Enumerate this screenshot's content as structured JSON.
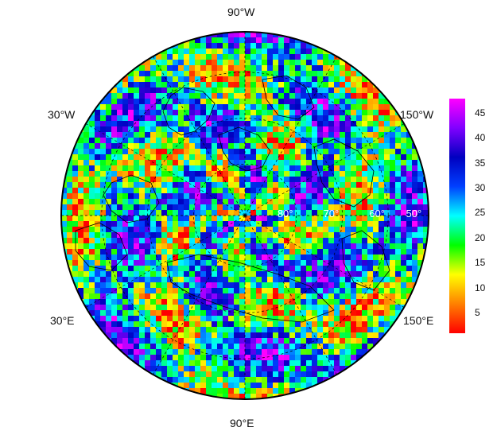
{
  "map": {
    "projection": "north-polar-stereographic",
    "longitude_labels": {
      "top": "90°W",
      "left_top": "30°W",
      "right_top": "150°W",
      "left_bottom": "30°E",
      "right_bottom": "150°E",
      "bottom": "90°E"
    },
    "latitude_labels": [
      "80°",
      "70°",
      "60°",
      "50°"
    ],
    "field_description_colormap": "rainbow",
    "colorbar": {
      "min": 1,
      "max": 48,
      "ticks": [
        "45",
        "40",
        "35",
        "30",
        "25",
        "20",
        "15",
        "10",
        "5"
      ],
      "tick_values": [
        45,
        40,
        35,
        30,
        25,
        20,
        15,
        10,
        5
      ],
      "colors": [
        "#ff0000",
        "#ff8000",
        "#ffff00",
        "#00ff00",
        "#00ffff",
        "#0040ff",
        "#0000c0",
        "#8000ff",
        "#ff00ff"
      ]
    },
    "colors": {
      "frame": "#000000",
      "coastline": "#000000",
      "graticule": "#000000"
    }
  }
}
